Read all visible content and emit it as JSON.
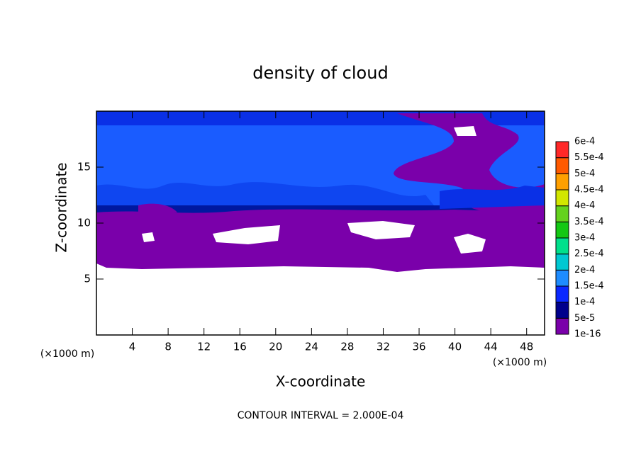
{
  "chart_data": {
    "type": "contour",
    "title": "density of cloud",
    "xlabel": "X-coordinate",
    "ylabel": "Z-coordinate",
    "xunit": "(×1000 m)",
    "yunit": "(×1000 m)",
    "note": "CONTOUR INTERVAL = 2.000E-04",
    "xlim": [
      0,
      50
    ],
    "xticks": [
      4,
      8,
      12,
      16,
      20,
      24,
      28,
      32,
      36,
      40,
      44,
      48
    ],
    "ylim": [
      0,
      20
    ],
    "yticks": [
      5,
      10,
      15
    ],
    "colorbar": {
      "ticks": [
        {
          "value": 1e-16,
          "label": "1e-16"
        },
        {
          "value": 5e-05,
          "label": "5e-5"
        },
        {
          "value": 0.0001,
          "label": "1e-4"
        },
        {
          "value": 0.00015,
          "label": "1.5e-4"
        },
        {
          "value": 0.0002,
          "label": "2e-4"
        },
        {
          "value": 0.00025,
          "label": "2.5e-4"
        },
        {
          "value": 0.0003,
          "label": "3e-4"
        },
        {
          "value": 0.00035,
          "label": "3.5e-4"
        },
        {
          "value": 0.0004,
          "label": "4e-4"
        },
        {
          "value": 0.00045,
          "label": "4.5e-4"
        },
        {
          "value": 0.0005,
          "label": "5e-4"
        },
        {
          "value": 0.00055,
          "label": "5.5e-4"
        },
        {
          "value": 0.0006,
          "label": "6e-4"
        }
      ],
      "colors": [
        "#7a00aa",
        "#00008c",
        "#0a28ff",
        "#1e8cff",
        "#00c8d2",
        "#00e08c",
        "#14c814",
        "#64d21e",
        "#d2e600",
        "#ffa000",
        "#ff5a00",
        "#ff2828",
        "#ff8c8c"
      ]
    }
  }
}
